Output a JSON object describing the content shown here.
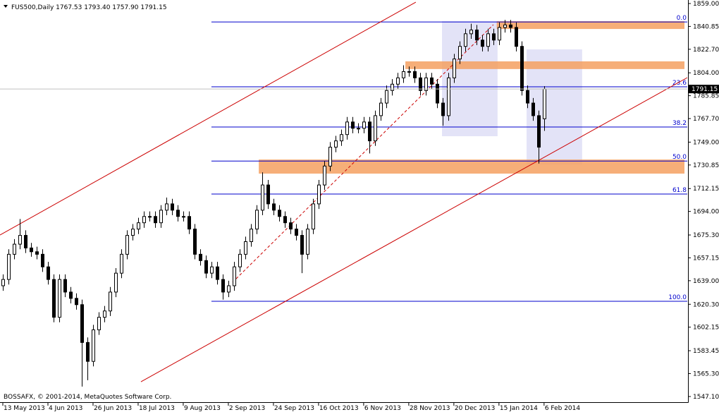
{
  "chart_data": {
    "type": "candlestick",
    "title": "FUS500,Daily  1767.53 1793.40 1757.90 1791.15",
    "footer": "BOSSAFX, © 2001-2014, MetaQuotes Software Corp.",
    "open": [
      1635,
      1640,
      1660,
      1668,
      1675,
      1665,
      1662,
      1660,
      1650,
      1640,
      1610,
      1640,
      1630,
      1625,
      1620,
      1590,
      1575,
      1600,
      1610,
      1615,
      1630,
      1645,
      1660,
      1675,
      1680,
      1685,
      1690,
      1690,
      1685,
      1695,
      1700,
      1695,
      1690,
      1690,
      1680,
      1660,
      1655,
      1645,
      1650,
      1640,
      1630,
      1635,
      1650,
      1660,
      1670,
      1680,
      1695,
      1715,
      1700,
      1695,
      1690,
      1685,
      1680,
      1675,
      1660,
      1680,
      1700,
      1715,
      1730,
      1745,
      1750,
      1755,
      1765,
      1760,
      1760,
      1765,
      1750,
      1770,
      1780,
      1790,
      1795,
      1800,
      1805,
      1805,
      1800,
      1790,
      1800,
      1795,
      1780,
      1770,
      1800,
      1815,
      1825,
      1835,
      1838,
      1830,
      1825,
      1835,
      1830,
      1840,
      1842,
      1840,
      1825,
      1790,
      1780,
      1770,
      1767.53
    ],
    "high": [
      1644,
      1664,
      1672,
      1688,
      1679,
      1669,
      1666,
      1664,
      1654,
      1644,
      1644,
      1644,
      1634,
      1629,
      1624,
      1594,
      1604,
      1614,
      1619,
      1634,
      1649,
      1664,
      1679,
      1684,
      1689,
      1694,
      1694,
      1694,
      1699,
      1705,
      1704,
      1699,
      1694,
      1694,
      1684,
      1664,
      1659,
      1654,
      1654,
      1644,
      1639,
      1654,
      1664,
      1674,
      1684,
      1699,
      1725,
      1719,
      1704,
      1699,
      1694,
      1689,
      1684,
      1679,
      1684,
      1704,
      1719,
      1734,
      1749,
      1754,
      1759,
      1769,
      1769,
      1764,
      1769,
      1769,
      1774,
      1784,
      1794,
      1799,
      1804,
      1810,
      1809,
      1809,
      1804,
      1804,
      1804,
      1799,
      1784,
      1804,
      1819,
      1829,
      1839,
      1843,
      1842,
      1834,
      1839,
      1839,
      1844,
      1846,
      1846,
      1844,
      1829,
      1794,
      1784,
      1774,
      1793.4
    ],
    "low": [
      1631,
      1636,
      1656,
      1664,
      1661,
      1658,
      1656,
      1646,
      1636,
      1606,
      1606,
      1626,
      1621,
      1616,
      1555,
      1560,
      1571,
      1596,
      1606,
      1611,
      1626,
      1641,
      1656,
      1671,
      1676,
      1681,
      1686,
      1681,
      1681,
      1691,
      1691,
      1686,
      1686,
      1676,
      1656,
      1651,
      1641,
      1641,
      1636,
      1624,
      1626,
      1631,
      1646,
      1656,
      1666,
      1676,
      1691,
      1696,
      1691,
      1686,
      1681,
      1676,
      1671,
      1645,
      1656,
      1676,
      1696,
      1711,
      1726,
      1741,
      1746,
      1751,
      1756,
      1756,
      1756,
      1740,
      1746,
      1766,
      1776,
      1786,
      1791,
      1796,
      1801,
      1796,
      1786,
      1786,
      1791,
      1776,
      1762,
      1766,
      1796,
      1811,
      1821,
      1831,
      1826,
      1821,
      1821,
      1826,
      1826,
      1836,
      1836,
      1821,
      1786,
      1776,
      1766,
      1732,
      1757.9
    ],
    "close": [
      1640,
      1660,
      1668,
      1675,
      1665,
      1662,
      1660,
      1650,
      1640,
      1610,
      1640,
      1630,
      1625,
      1620,
      1590,
      1575,
      1600,
      1610,
      1615,
      1630,
      1645,
      1660,
      1675,
      1680,
      1685,
      1690,
      1690,
      1685,
      1695,
      1700,
      1695,
      1690,
      1690,
      1680,
      1660,
      1655,
      1645,
      1650,
      1640,
      1630,
      1635,
      1650,
      1660,
      1670,
      1680,
      1695,
      1715,
      1700,
      1695,
      1690,
      1685,
      1680,
      1675,
      1660,
      1680,
      1700,
      1715,
      1730,
      1745,
      1750,
      1755,
      1765,
      1760,
      1760,
      1765,
      1750,
      1770,
      1780,
      1790,
      1795,
      1800,
      1805,
      1805,
      1800,
      1790,
      1800,
      1795,
      1780,
      1770,
      1800,
      1815,
      1825,
      1835,
      1838,
      1830,
      1825,
      1835,
      1830,
      1840,
      1842,
      1840,
      1825,
      1790,
      1780,
      1770,
      1745,
      1791.15
    ],
    "xlim": [
      -0.5,
      121.4
    ],
    "xticks": [
      {
        "value": 0,
        "label": "13 May 2013"
      },
      {
        "value": 8,
        "label": "4 Jun 2013"
      },
      {
        "value": 16,
        "label": "26 Jun 2013"
      },
      {
        "value": 24,
        "label": "18 Jul 2013"
      },
      {
        "value": 32,
        "label": "9 Aug 2013"
      },
      {
        "value": 40,
        "label": "2 Sep 2013"
      },
      {
        "value": 48,
        "label": "24 Sep 2013"
      },
      {
        "value": 56,
        "label": "16 Oct 2013"
      },
      {
        "value": 64,
        "label": "6 Nov 2013"
      },
      {
        "value": 72,
        "label": "28 Nov 2013"
      },
      {
        "value": 80,
        "label": "20 Dec 2013"
      },
      {
        "value": 88,
        "label": "15 Jan 2014"
      },
      {
        "value": 96,
        "label": "6 Feb 2014"
      }
    ],
    "ylim": [
      1542.6,
      1861.8
    ],
    "yticks": [
      {
        "value": 1859,
        "label": "1859.00"
      },
      1840.85,
      {
        "value": 1822.7,
        "label": "1822.70"
      },
      {
        "value": 1804,
        "label": "1804.00"
      },
      1785.85,
      {
        "value": 1767.7,
        "label": "1767.70"
      },
      {
        "value": 1749,
        "label": "1749.00"
      },
      1730.85,
      1712.15,
      {
        "value": 1694,
        "label": "1694.00"
      },
      {
        "value": 1675.3,
        "label": "1675.30"
      },
      1657.15,
      {
        "value": 1639,
        "label": "1639.00"
      },
      {
        "value": 1620.3,
        "label": "1620.30"
      },
      1602.15,
      1583.45,
      {
        "value": 1565.3,
        "label": "1565.30"
      },
      {
        "value": 1547.1,
        "label": "1547.10"
      }
    ],
    "fibonacci": {
      "start": 37,
      "color": "#0000cc",
      "levels": [
        {
          "label": "0.0",
          "price": 1844.4
        },
        {
          "label": "23.6",
          "price": 1792.9
        },
        {
          "label": "38.2",
          "price": 1761
        },
        {
          "label": "50.0",
          "price": 1734
        },
        {
          "label": "61.8",
          "price": 1707.8
        },
        {
          "label": "100.0",
          "price": 1622.7
        }
      ]
    },
    "zones": {
      "color": "#f4a060",
      "items": [
        {
          "start": 87.6,
          "low": 1838.8,
          "high": 1845
        },
        {
          "start": 71.4,
          "low": 1807,
          "high": 1813.1
        },
        {
          "start": 45.4,
          "low": 1724,
          "high": 1735.2
        }
      ]
    },
    "boxes": {
      "color": "#c8c8f0",
      "items": [
        {
          "start": 77.9,
          "end": 87.75,
          "low": 1753.7,
          "high": 1845
        },
        {
          "start": 92.9,
          "end": 102.75,
          "low": 1731.3,
          "high": 1822.6
        }
      ]
    },
    "trendlines": [
      {
        "color": "#cc0000",
        "dashed": false,
        "points": [
          {
            "x": -0.5,
            "price": 1675.3
          },
          {
            "x": 73.25,
            "price": 1860.1
          }
        ]
      },
      {
        "color": "#cc0000",
        "dashed": false,
        "points": [
          {
            "x": 24.5,
            "price": 1558.8
          },
          {
            "x": 121.4,
            "price": 1800.2
          }
        ]
      },
      {
        "color": "#cc0000",
        "dashed": true,
        "points": [
          {
            "x": 40.75,
            "price": 1637.8
          },
          {
            "x": 87,
            "price": 1842.2
          }
        ]
      }
    ]
  }
}
